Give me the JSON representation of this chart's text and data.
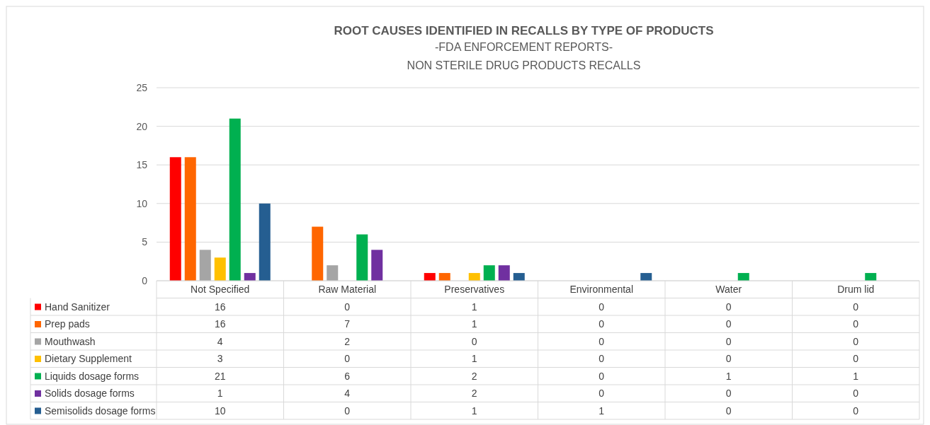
{
  "chart_data": {
    "type": "bar",
    "title": "ROOT CAUSES IDENTIFIED IN RECALLS BY TYPE OF PRODUCTS",
    "subtitle": "-FDA ENFORCEMENT REPORTS-\nNON STERILE DRUG PRODUCTS RECALLS",
    "categories": [
      "Not Specified",
      "Raw Material",
      "Preservatives",
      "Environmental",
      "Water",
      "Drum lid"
    ],
    "series": [
      {
        "name": "Hand Sanitizer",
        "color": "#ff0000",
        "values": [
          16,
          0,
          1,
          0,
          0,
          0
        ]
      },
      {
        "name": "Prep pads",
        "color": "#ff6600",
        "values": [
          16,
          7,
          1,
          0,
          0,
          0
        ]
      },
      {
        "name": "Mouthwash",
        "color": "#a5a5a5",
        "values": [
          4,
          2,
          0,
          0,
          0,
          0
        ]
      },
      {
        "name": "Dietary Supplement",
        "color": "#ffc000",
        "values": [
          3,
          0,
          1,
          0,
          0,
          0
        ]
      },
      {
        "name": "Liquids dosage forms",
        "color": "#00b050",
        "values": [
          21,
          6,
          2,
          0,
          1,
          1
        ]
      },
      {
        "name": "Solids dosage forms",
        "color": "#7030a0",
        "values": [
          1,
          4,
          2,
          0,
          0,
          0
        ]
      },
      {
        "name": "Semisolids dosage forms",
        "color": "#255e91",
        "values": [
          10,
          0,
          1,
          1,
          0,
          0
        ]
      }
    ],
    "ylim": [
      0,
      25
    ],
    "yticks": [
      0,
      5,
      10,
      15,
      20,
      25
    ],
    "grid": "y",
    "legend": "bottom",
    "data_labels": true
  }
}
